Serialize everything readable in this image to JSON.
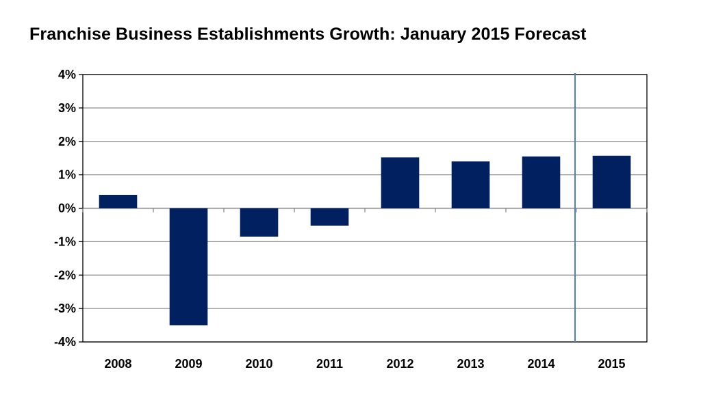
{
  "chart_data": {
    "type": "bar",
    "title": "Franchise Business Establishments Growth: January 2015 Forecast",
    "xlabel": "",
    "ylabel": "",
    "categories": [
      "2008",
      "2009",
      "2010",
      "2011",
      "2012",
      "2013",
      "2014",
      "2015"
    ],
    "values": [
      0.4,
      -3.5,
      -0.85,
      -0.52,
      1.52,
      1.4,
      1.55,
      1.57
    ],
    "y_tick_labels": [
      "4%",
      "3%",
      "2%",
      "1%",
      "0%",
      "-1%",
      "-2%",
      "-3%",
      "-4%"
    ],
    "ylim": [
      -4,
      4
    ],
    "y_ticks": [
      4,
      3,
      2,
      1,
      0,
      -1,
      -2,
      -3,
      -4
    ],
    "grid": true,
    "legend": "none",
    "forecast_divider_between": [
      "2014",
      "2015"
    ],
    "bar_color": "#002060",
    "divider_color": "#4f81bd"
  }
}
